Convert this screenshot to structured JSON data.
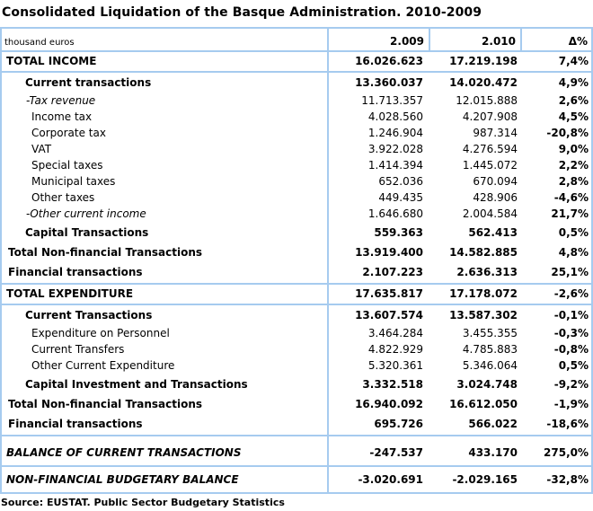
{
  "title": "Consolidated Liquidation of the Basque Administration. 2010-2009",
  "colors": {
    "border_blue": "#a6cbef"
  },
  "header": {
    "unit_label": "thousand euros",
    "col_2009": "2.009",
    "col_2010": "2.010",
    "col_delta": "Δ%"
  },
  "sections": [
    {
      "name": "total-income",
      "rows": [
        {
          "label": "TOTAL INCOME",
          "y2009": "16.026.623",
          "y2010": "17.219.198",
          "delta": "7,4%",
          "style": "total"
        }
      ]
    },
    {
      "name": "income-detail",
      "rows": [
        {
          "label": "Current transactions",
          "y2009": "13.360.037",
          "y2010": "14.020.472",
          "delta": "4,9%",
          "style": "section-bold"
        },
        {
          "label": "-Tax revenue",
          "y2009": "11.713.357",
          "y2010": "12.015.888",
          "delta": "2,6%",
          "style": "item-italic"
        },
        {
          "label": "Income tax",
          "y2009": "4.028.560",
          "y2010": "4.207.908",
          "delta": "4,5%",
          "style": "item"
        },
        {
          "label": "Corporate tax",
          "y2009": "1.246.904",
          "y2010": "987.314",
          "delta": "-20,8%",
          "style": "item"
        },
        {
          "label": "VAT",
          "y2009": "3.922.028",
          "y2010": "4.276.594",
          "delta": "9,0%",
          "style": "item"
        },
        {
          "label": "Special taxes",
          "y2009": "1.414.394",
          "y2010": "1.445.072",
          "delta": "2,2%",
          "style": "item"
        },
        {
          "label": "Municipal taxes",
          "y2009": "652.036",
          "y2010": "670.094",
          "delta": "2,8%",
          "style": "item"
        },
        {
          "label": "Other taxes",
          "y2009": "449.435",
          "y2010": "428.906",
          "delta": "-4,6%",
          "style": "item"
        },
        {
          "label": "-Other current income",
          "y2009": "1.646.680",
          "y2010": "2.004.584",
          "delta": "21,7%",
          "style": "item-italic"
        },
        {
          "label": "Capital Transactions",
          "y2009": "559.363",
          "y2010": "562.413",
          "delta": "0,5%",
          "style": "section-bold"
        },
        {
          "label": "Total Non-financial Transactions",
          "y2009": "13.919.400",
          "y2010": "14.582.885",
          "delta": "4,8%",
          "style": "aggregate"
        },
        {
          "label": "Financial transactions",
          "y2009": "2.107.223",
          "y2010": "2.636.313",
          "delta": "25,1%",
          "style": "aggregate"
        }
      ]
    },
    {
      "name": "total-expenditure",
      "rows": [
        {
          "label": "TOTAL EXPENDITURE",
          "y2009": "17.635.817",
          "y2010": "17.178.072",
          "delta": "-2,6%",
          "style": "total"
        }
      ]
    },
    {
      "name": "expenditure-detail",
      "rows": [
        {
          "label": "Current Transactions",
          "y2009": "13.607.574",
          "y2010": "13.587.302",
          "delta": "-0,1%",
          "style": "section-bold"
        },
        {
          "label": "Expenditure on Personnel",
          "y2009": "3.464.284",
          "y2010": "3.455.355",
          "delta": "-0,3%",
          "style": "item"
        },
        {
          "label": "Current Transfers",
          "y2009": "4.822.929",
          "y2010": "4.785.883",
          "delta": "-0,8%",
          "style": "item"
        },
        {
          "label": "Other Current Expenditure",
          "y2009": "5.320.361",
          "y2010": "5.346.064",
          "delta": "0,5%",
          "style": "item"
        },
        {
          "label": "Capital Investment and Transactions",
          "y2009": "3.332.518",
          "y2010": "3.024.748",
          "delta": "-9,2%",
          "style": "section-bold"
        },
        {
          "label": "Total Non-financial Transactions",
          "y2009": "16.940.092",
          "y2010": "16.612.050",
          "delta": "-1,9%",
          "style": "aggregate"
        },
        {
          "label": "Financial transactions",
          "y2009": "695.726",
          "y2010": "566.022",
          "delta": "-18,6%",
          "style": "aggregate"
        }
      ]
    },
    {
      "name": "balance-current",
      "rows": [
        {
          "label": "BALANCE OF CURRENT TRANSACTIONS",
          "y2009": "-247.537",
          "y2010": "433.170",
          "delta": "275,0%",
          "style": "balance"
        }
      ]
    },
    {
      "name": "non-financial-balance",
      "rows": [
        {
          "label": "NON-FINANCIAL BUDGETARY BALANCE",
          "y2009": "-3.020.691",
          "y2010": "-2.029.165",
          "delta": "-32,8%",
          "style": "balance"
        }
      ]
    }
  ],
  "footer": {
    "source": "Source: EUSTAT. Public Sector Budgetary Statistics"
  }
}
